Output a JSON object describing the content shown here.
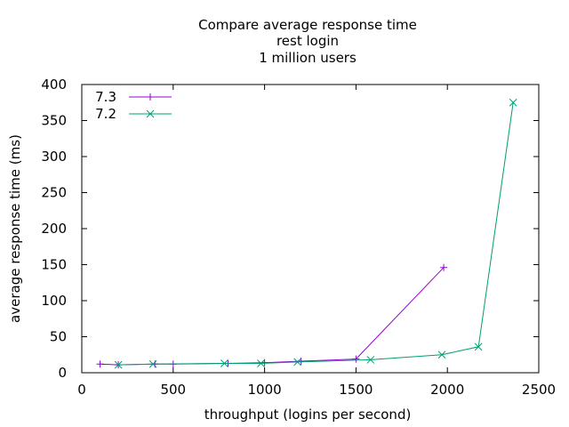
{
  "chart_data": {
    "type": "line",
    "title_lines": [
      "Compare average response time",
      "rest login",
      "1 million users"
    ],
    "xlabel": "throughput (logins per second)",
    "ylabel": "average response time (ms)",
    "xlim": [
      0,
      2500
    ],
    "ylim": [
      0,
      400
    ],
    "xticks": [
      0,
      500,
      1000,
      1500,
      2000,
      2500
    ],
    "yticks": [
      0,
      50,
      100,
      150,
      200,
      250,
      300,
      350,
      400
    ],
    "grid": false,
    "legend_position": "top-left",
    "series": [
      {
        "name": "7.3",
        "color": "#9400d3",
        "marker": "plus",
        "x": [
          100,
          200,
          400,
          500,
          800,
          1000,
          1200,
          1500,
          1980
        ],
        "y": [
          12,
          11,
          12,
          12,
          13,
          14,
          16,
          19,
          146
        ]
      },
      {
        "name": "7.2",
        "color": "#009e73",
        "marker": "cross",
        "x": [
          200,
          390,
          780,
          980,
          1180,
          1580,
          1970,
          2170,
          2360
        ],
        "y": [
          11,
          12,
          13,
          13,
          15,
          18,
          25,
          36,
          375
        ]
      }
    ]
  }
}
